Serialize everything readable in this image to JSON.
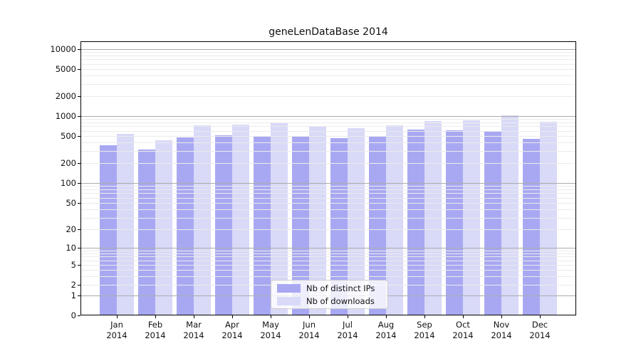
{
  "chart_data": {
    "type": "bar",
    "title": "geneLenDataBase 2014",
    "categories": [
      "Jan",
      "Feb",
      "Mar",
      "Apr",
      "May",
      "Jun",
      "Jul",
      "Aug",
      "Sep",
      "Oct",
      "Nov",
      "Dec"
    ],
    "category_year": "2014",
    "series": [
      {
        "name": "Nb of distinct IPs",
        "color": "#a8a8f2",
        "values": [
          370,
          320,
          480,
          515,
          505,
          500,
          460,
          485,
          620,
          610,
          585,
          455
        ]
      },
      {
        "name": "Nb of downloads",
        "color": "#d9d9f8",
        "values": [
          545,
          435,
          730,
          750,
          810,
          705,
          660,
          730,
          845,
          865,
          1015,
          815
        ]
      }
    ],
    "xlabel": "",
    "ylabel": "",
    "yscale": "symlog",
    "y_ticks": [
      10000,
      5000,
      2000,
      1000,
      500,
      200,
      100,
      50,
      20,
      10,
      5,
      2,
      1,
      0
    ],
    "ylim": [
      0,
      13000
    ],
    "grid": "both",
    "legend_position": "lower-center"
  },
  "colors": {
    "background": "#ffffff",
    "axis": "#000000",
    "major_grid": "#ababab",
    "minor_grid": "#ebebeb"
  }
}
